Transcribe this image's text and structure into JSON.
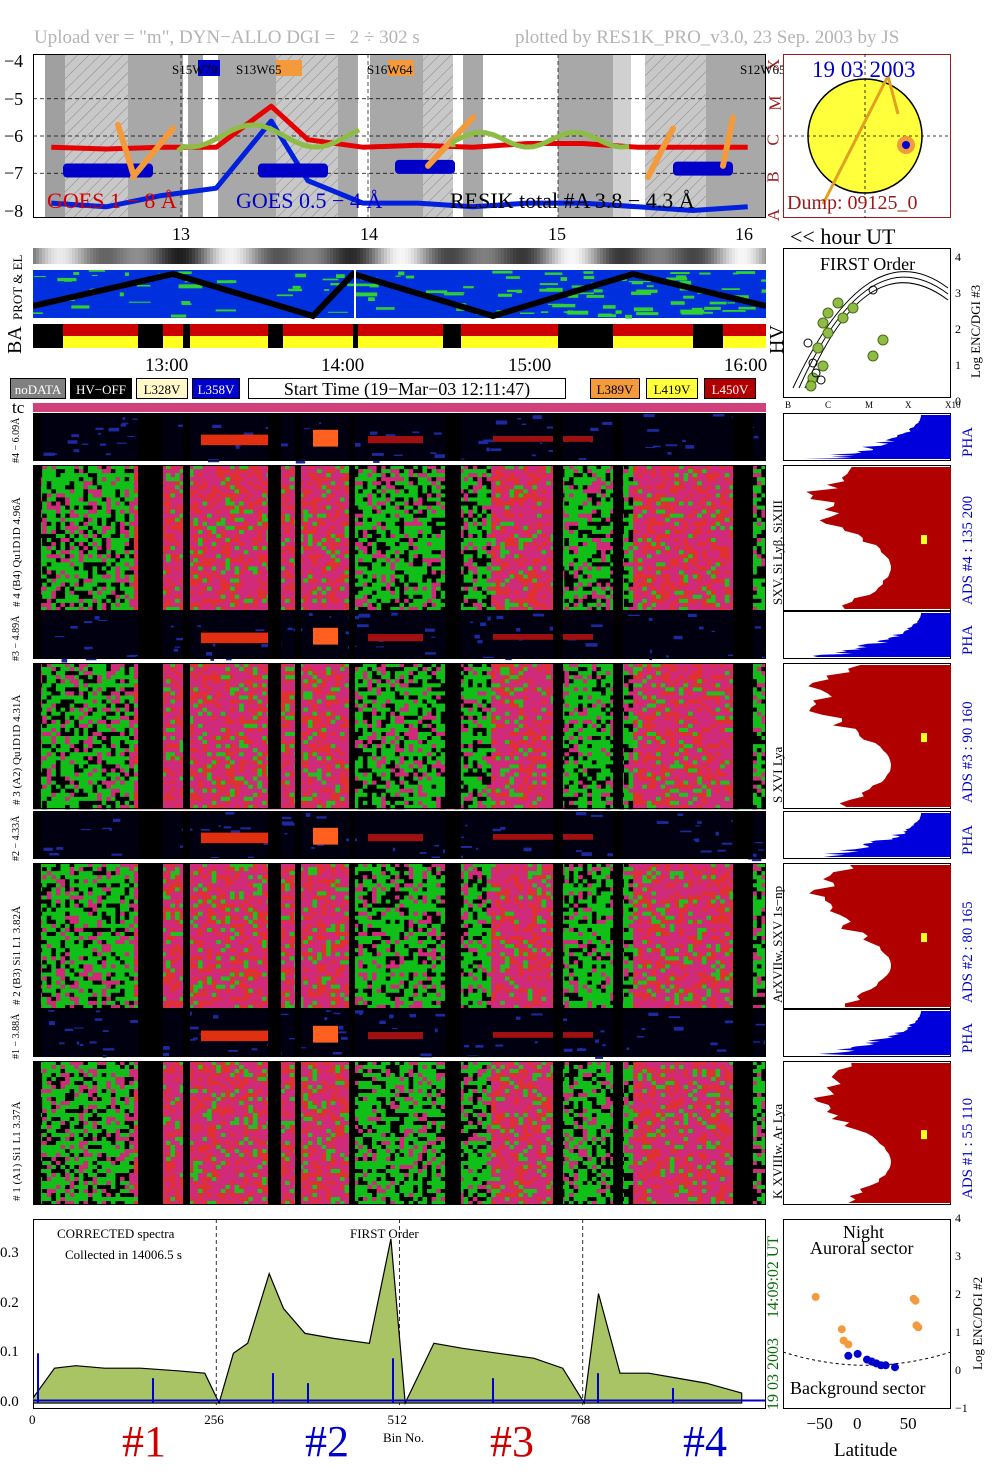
{
  "header": {
    "left": "Upload ver = \"m\", DYN−ALLO DGI =   2 ÷ 302 s",
    "right": "plotted by RES1K_PRO_v3.0, 23 Sep. 2003 by JS"
  },
  "goes": {
    "yticks": [
      "−4",
      "−5",
      "−6",
      "−7",
      "−8"
    ],
    "classes": [
      "X",
      "M",
      "C",
      "B",
      "A"
    ],
    "labels": {
      "goes18": "GOES 1 − 8 Å",
      "goes054": "GOES 0.5 − 4 Å",
      "resik": "RESIK total #A  3.8 − 4.3 Å"
    },
    "ar": [
      "S15W79",
      "S13W65",
      "S16W64",
      "S12W65"
    ]
  },
  "sun": {
    "date": "19 03 2003",
    "dump": "Dump: 09125_0"
  },
  "hours_top": [
    "13",
    "14",
    "15",
    "16"
  ],
  "hour_ut_label": "<< hour UT",
  "side_labels": {
    "prot_el": "PROT & EL",
    "ba": "BA",
    "hv": "HV",
    "tc": "tc"
  },
  "times": [
    "13:00",
    "14:00",
    "15:00",
    "16:00"
  ],
  "legend": {
    "nodata": "noDATA",
    "hvoff": "HV−OFF",
    "l328": "L328V",
    "l358": "L358V",
    "start": "Start Time (19−Mar−03 12:11:47)",
    "l389": "L389V",
    "l419": "L419V",
    "l450": "L450V"
  },
  "first_order": {
    "title": "FIRST Order",
    "ylabel": "Log ENC/DGI #3",
    "yticks": [
      "4",
      "3",
      "2",
      "1",
      "0"
    ],
    "xticks": [
      "B",
      "C",
      "M",
      "X",
      "X10"
    ]
  },
  "channels": [
    {
      "pha_label": "#4  − 6.09Å",
      "main_label": "# 4 (B4) Qu1D1D 4.96Å",
      "line_label": "SXV, Si Lyβ, SiXIII",
      "ads": "ADS #4 :   135 200",
      "pha": "PHA"
    },
    {
      "pha_label": "#3 − 4.89Å",
      "main_label": "# 3 (A2) Qu1D1D  4.31Å",
      "line_label": "S XVI Lya",
      "ads": "ADS #3 :     90 160",
      "pha": "PHA"
    },
    {
      "pha_label": "#2 − 4.33Å",
      "main_label": "# 2 (B3) Si1 L1  3.82Å",
      "line_label": "ArXVIIw, SXV 1s−np",
      "ads": "ADS #2 :     80 165",
      "pha": "PHA"
    },
    {
      "pha_label": "#1 − 3.88Å",
      "main_label": "# 1 (A1) Si1 L1  3.37Å",
      "line_label": "K XVIIIw, Ar Lya",
      "ads": "ADS #1 :     55 110",
      "pha": "PHA"
    }
  ],
  "spectrum": {
    "note1": "CORRECTED spectra",
    "note2": "Collected in 14006.5 s",
    "order": "FIRST Order",
    "stamp_time": "14:09:02 UT",
    "stamp_date": "19 03 2003",
    "yticks": [
      "0.3",
      "0.2",
      "0.1",
      "0.0"
    ],
    "xticks": [
      "0",
      "256",
      "512",
      "768"
    ],
    "xlabel": "Bin No.",
    "sections": [
      "#1",
      "#2",
      "#3",
      "#4"
    ]
  },
  "latitude": {
    "night": "Night",
    "auroral": "Auroral sector",
    "background": "Background sector",
    "xlabel": "Latitude",
    "ylabel": "Log ENC/DGI #2",
    "xticks": [
      "−50",
      "0",
      "50"
    ],
    "yticks": [
      "4",
      "3",
      "2",
      "1",
      "0",
      "−1"
    ]
  },
  "colors": {
    "red": "#cc0000",
    "blue": "#0000cc",
    "accent": "#9e1a1a",
    "ads_fill": "#b00000",
    "pha_fill": "#0000dd",
    "green": "#8fbc44"
  },
  "chart_data": [
    {
      "type": "line",
      "title": "",
      "x_label": "hour UT",
      "x": [
        12.2,
        12.5,
        12.8,
        13.1,
        13.4,
        13.6,
        13.9,
        14.2,
        14.5,
        14.8,
        15.1,
        15.4,
        15.7,
        16.0
      ],
      "series": [
        {
          "name": "GOES 1 − 8 Å",
          "values": [
            -6.3,
            -6.35,
            -6.3,
            -6.3,
            -5.2,
            -6.1,
            -6.3,
            -6.25,
            -6.3,
            -6.2,
            -6.2,
            -6.3,
            -6.3,
            -6.3
          ]
        },
        {
          "name": "GOES 0.5 − 4 Å",
          "values": [
            -7.8,
            -7.9,
            -7.6,
            -7.4,
            -5.6,
            -7.2,
            -7.8,
            -7.8,
            -7.9,
            -7.8,
            -7.8,
            -7.9,
            -8.0,
            -7.9
          ]
        }
      ],
      "ylim": [
        -8.2,
        -3.8
      ]
    },
    {
      "type": "area",
      "title": "",
      "x_label": "Bin No.",
      "x": [
        0,
        30,
        60,
        100,
        150,
        200,
        240,
        260,
        280,
        300,
        330,
        350,
        380,
        420,
        470,
        500,
        520,
        560,
        600,
        650,
        700,
        740,
        770,
        790,
        820,
        860,
        900,
        940,
        990
      ],
      "values": [
        0.01,
        0.07,
        0.075,
        0.07,
        0.07,
        0.065,
        0.06,
        0.0,
        0.1,
        0.12,
        0.26,
        0.19,
        0.14,
        0.13,
        0.12,
        0.33,
        0.0,
        0.12,
        0.11,
        0.1,
        0.09,
        0.07,
        0.0,
        0.22,
        0.06,
        0.06,
        0.05,
        0.04,
        0.02
      ],
      "ylim": [
        0,
        0.35
      ],
      "xlim": [
        0,
        1024
      ]
    },
    {
      "type": "scatter",
      "title": "",
      "x_label": "Latitude",
      "y_label": "Log ENC/DGI #2",
      "series": [
        {
          "name": "Auroral sector",
          "x": [
            -55,
            -27,
            -25,
            -20,
            50,
            52,
            53,
            55
          ],
          "y": [
            1.95,
            1.1,
            0.8,
            0.7,
            1.9,
            1.85,
            1.2,
            1.15
          ]
        },
        {
          "name": "Background sector",
          "x": [
            -20,
            -10,
            0,
            5,
            10,
            15,
            20,
            30
          ],
          "y": [
            0.4,
            0.45,
            0.3,
            0.25,
            0.2,
            0.15,
            0.15,
            0.1
          ]
        }
      ],
      "xlim": [
        -90,
        90
      ],
      "ylim": [
        -1,
        4
      ]
    }
  ]
}
